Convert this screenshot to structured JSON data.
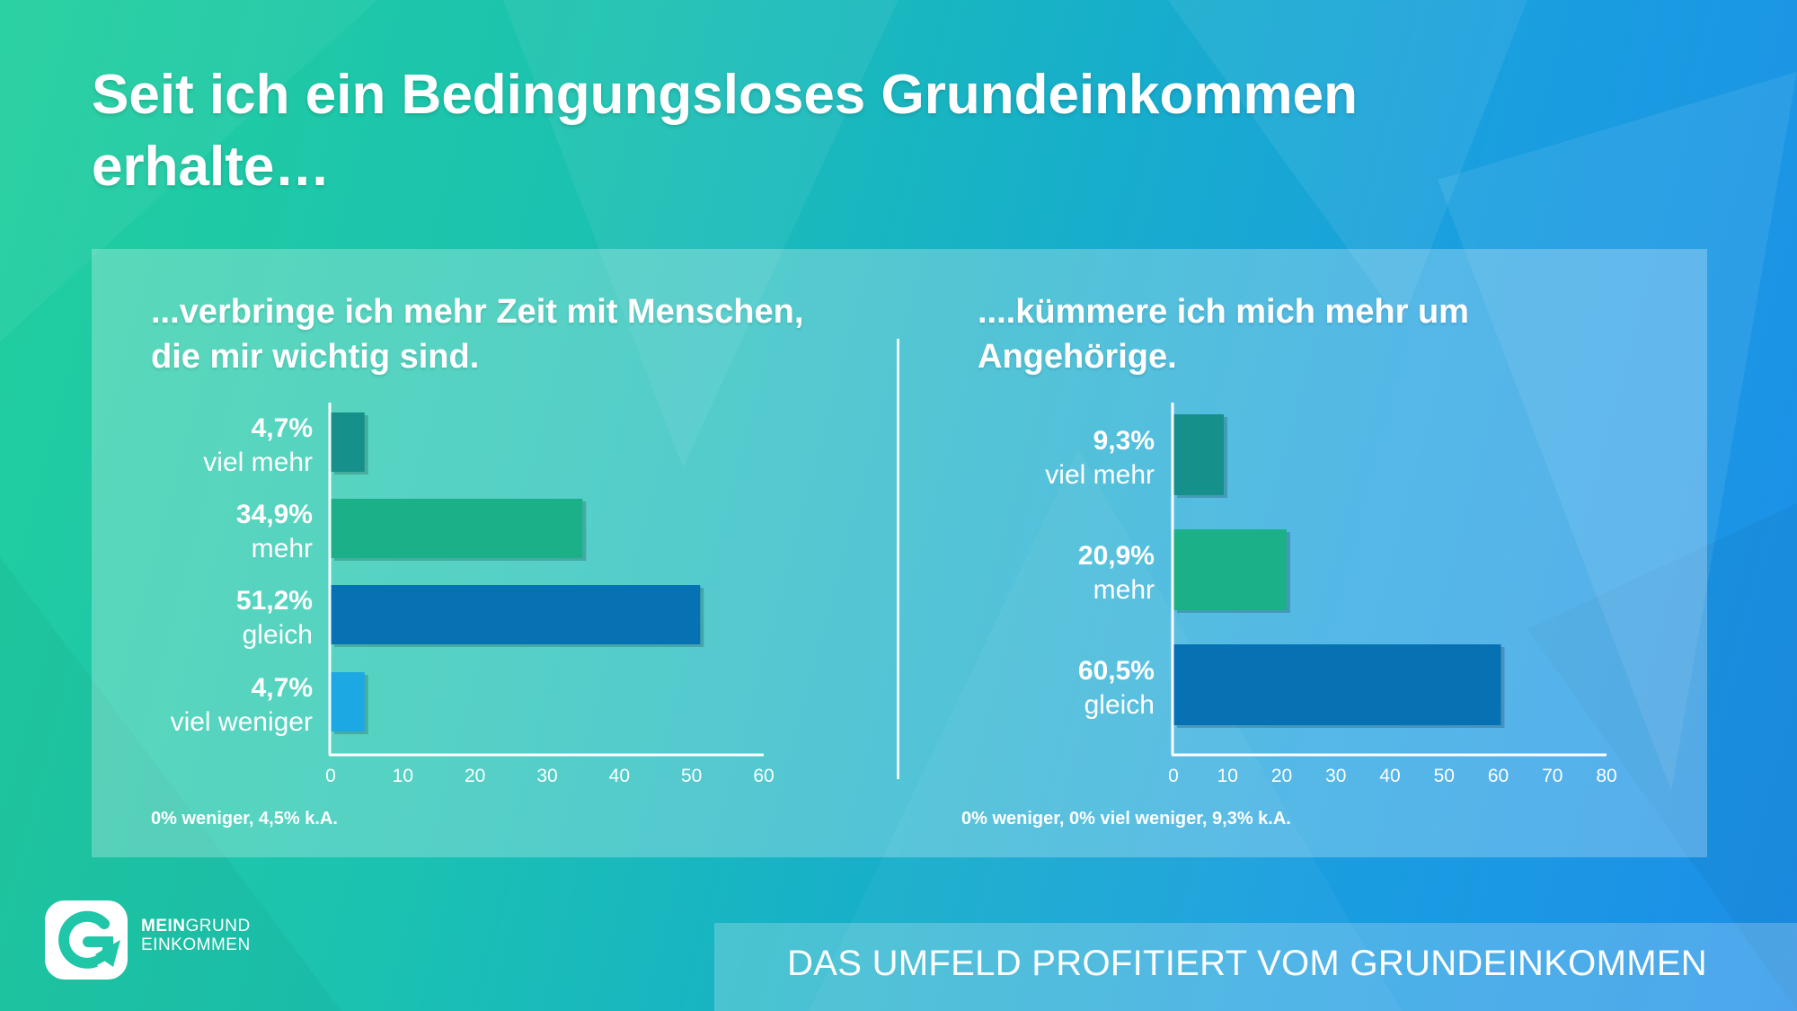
{
  "slide_title_line1": "Seit ich ein Bedingungsloses Grundeinkommen",
  "slide_title_line2": "erhalte…",
  "colors": {
    "viel_mehr": "#16908a",
    "mehr": "#1cb088",
    "gleich": "#0672b3",
    "viel_weniger": "#1ba8e3"
  },
  "chart_data": [
    {
      "type": "bar",
      "orientation": "horizontal",
      "title_line1": "...verbringe ich mehr Zeit mit Menschen,",
      "title_line2": "die mir wichtig sind.",
      "categories": [
        "viel mehr",
        "mehr",
        "gleich",
        "viel weniger"
      ],
      "values": [
        4.7,
        34.9,
        51.2,
        4.7
      ],
      "value_labels": [
        "4,7%",
        "34,9%",
        "51,2%",
        "4,7%"
      ],
      "colors": [
        "#16908a",
        "#1cb088",
        "#0672b3",
        "#1ba8e3"
      ],
      "xlim": [
        0,
        60
      ],
      "xticks": [
        "0",
        "10",
        "20",
        "30",
        "40",
        "50",
        "60"
      ],
      "footnote": "0% weniger, 4,5% k.A."
    },
    {
      "type": "bar",
      "orientation": "horizontal",
      "title_line1": "....kümmere ich mich mehr um",
      "title_line2": "Angehörige.",
      "categories": [
        "viel mehr",
        "mehr",
        "gleich"
      ],
      "values": [
        9.3,
        20.9,
        60.5
      ],
      "value_labels": [
        "9,3%",
        "20,9%",
        "60,5%"
      ],
      "colors": [
        "#16908a",
        "#1cb088",
        "#0672b3"
      ],
      "xlim": [
        0,
        80
      ],
      "xticks": [
        "0",
        "10",
        "20",
        "30",
        "40",
        "50",
        "60",
        "70",
        "80"
      ],
      "footnote": "0% weniger, 0% viel weniger, 9,3% k.A."
    }
  ],
  "logo": {
    "icon": "g-arrow-logo-icon",
    "word1_bold": "MEIN",
    "word1_rest": "GRUND",
    "word2": "EINKOMMEN"
  },
  "banner_text": "DAS UMFELD PROFITIERT VOM GRUNDEINKOMMEN"
}
